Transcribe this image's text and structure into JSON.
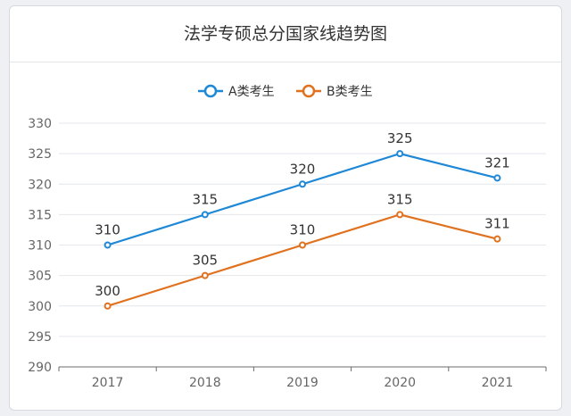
{
  "page": {
    "title": "法学专硕总分国家线趋势图"
  },
  "chart_data": {
    "type": "line",
    "title": "法学专硕总分国家线趋势图",
    "x": [
      "2017",
      "2018",
      "2019",
      "2020",
      "2021"
    ],
    "ylim": [
      290,
      330
    ],
    "yticks": [
      290,
      295,
      300,
      305,
      310,
      315,
      320,
      325,
      330
    ],
    "grid": true,
    "legend": "top",
    "series": [
      {
        "name": "A类考生",
        "color": "#1e88d6",
        "values": [
          310,
          315,
          320,
          325,
          321
        ]
      },
      {
        "name": "B类考生",
        "color": "#e0711e",
        "values": [
          300,
          305,
          310,
          315,
          311
        ]
      }
    ]
  }
}
